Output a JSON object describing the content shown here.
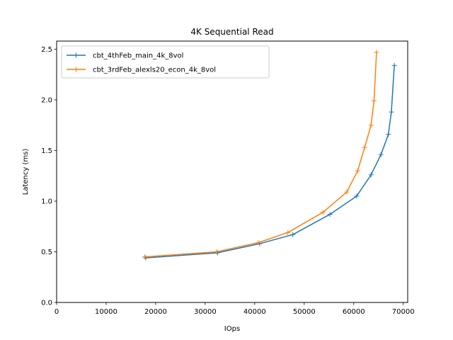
{
  "chart_data": {
    "type": "line",
    "title": "4K  Sequential Read",
    "xlabel": "IOps",
    "ylabel": "Latency (ms)",
    "xlim": [
      0,
      70900
    ],
    "ylim": [
      0,
      2.58
    ],
    "xticks": [
      0,
      10000,
      20000,
      30000,
      40000,
      50000,
      60000,
      70000
    ],
    "yticks": [
      0.0,
      0.5,
      1.0,
      1.5,
      2.0,
      2.5
    ],
    "xtick_labels": [
      "0",
      "10000",
      "20000",
      "30000",
      "40000",
      "50000",
      "60000",
      "70000"
    ],
    "ytick_labels": [
      "0.0",
      "0.5",
      "1.0",
      "1.5",
      "2.0",
      "2.5"
    ],
    "grid": false,
    "legend_position": "upper-left",
    "series": [
      {
        "name": "cbt_4thFeb_main_4k_8vol",
        "color": "#1f77b4",
        "marker": "plus",
        "x": [
          18000,
          32500,
          41000,
          47700,
          55200,
          60600,
          63500,
          65500,
          67000,
          67600,
          68200
        ],
        "y": [
          0.44,
          0.49,
          0.58,
          0.67,
          0.87,
          1.05,
          1.26,
          1.46,
          1.66,
          1.88,
          2.34
        ]
      },
      {
        "name": "cbt_3rdFeb_alexls20_econ_4k_8vol",
        "color": "#ff7f0e",
        "marker": "plus",
        "x": [
          17800,
          32300,
          40700,
          46700,
          53800,
          58600,
          60800,
          62200,
          63500,
          64100,
          64600
        ],
        "y": [
          0.45,
          0.5,
          0.59,
          0.69,
          0.89,
          1.09,
          1.3,
          1.53,
          1.75,
          1.99,
          2.47
        ]
      }
    ]
  }
}
